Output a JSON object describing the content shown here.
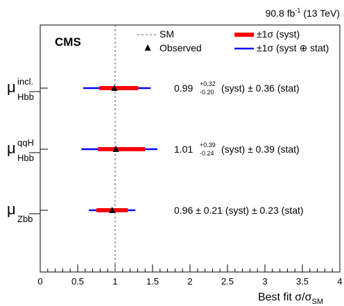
{
  "chart_data": {
    "type": "forest",
    "experiment_label": "CMS",
    "lumi_prefix": "90.8 fb",
    "lumi_exponent": "-1",
    "lumi_suffix": "(13 TeV)",
    "xlabel_main": "Best fit σ/σ",
    "xlabel_sub": "SM",
    "xlim": [
      0,
      4
    ],
    "xticks": [
      0,
      0.5,
      1,
      1.5,
      2,
      2.5,
      3,
      3.5,
      4
    ],
    "xticklabels": [
      "0",
      "0.5",
      "1",
      "1.5",
      "2",
      "2.5",
      "3",
      "3.5",
      "4"
    ],
    "reference_value": 1,
    "legend": {
      "sm": "SM",
      "observed": "Observed",
      "syst": "±1σ (syst)",
      "total": "±1σ (syst ⊕ stat)"
    },
    "colors": {
      "syst": "#ff0000",
      "total": "#0000ff",
      "reference": "#555555",
      "marker": "#000000"
    },
    "points": [
      {
        "label_main": "μ",
        "label_sup": "incl.",
        "label_sub": "Hbb",
        "value": 0.99,
        "syst_up": 0.32,
        "syst_down": 0.2,
        "total_up": 0.485,
        "total_down": 0.415,
        "result_value": "0.99",
        "result_up": "+0.32",
        "result_down": "-0.20",
        "result_syst": "(syst) ± 0.36 (stat)"
      },
      {
        "label_main": "μ",
        "label_sup": "qqH",
        "label_sub": "Hbb",
        "value": 1.01,
        "syst_up": 0.39,
        "syst_down": 0.24,
        "total_up": 0.555,
        "total_down": 0.46,
        "result_value": "1.01",
        "result_up": "+0.39",
        "result_down": "-0.24",
        "result_syst": "(syst) ± 0.39 (stat)"
      },
      {
        "label_main": "μ",
        "label_sup": "",
        "label_sub": "Zbb",
        "value": 0.96,
        "syst_up": 0.21,
        "syst_down": 0.21,
        "total_up": 0.31,
        "total_down": 0.31,
        "result_value": "0.96 ± 0.21 (syst) ± 0.23 (stat)",
        "result_up": "",
        "result_down": "",
        "result_syst": ""
      }
    ]
  }
}
